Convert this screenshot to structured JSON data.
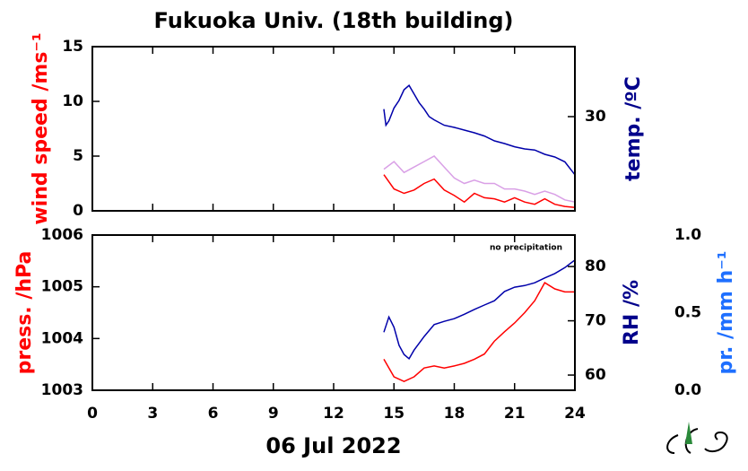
{
  "chart_data": [
    {
      "type": "line",
      "title": "Fukuoka Univ. (18th building)",
      "ylabel": "wind speed /ms⁻¹",
      "ylabel_color": "#ff0000",
      "y2label": "temp. /ºC",
      "y2label_color": "#00008b",
      "xlim": [
        0,
        24
      ],
      "xticks": [
        0,
        3,
        6,
        9,
        12,
        15,
        18,
        21,
        24
      ],
      "xtick_labels": false,
      "ylim": [
        0,
        15
      ],
      "yticks": [
        0,
        5,
        10,
        15
      ],
      "y2lim": [
        21.25,
        36.5
      ],
      "y2ticks": [
        30
      ],
      "series": [
        {
          "color": "#d9a0e6",
          "axis": "y",
          "x": [
            14.5,
            15,
            15.5,
            16,
            16.5,
            17,
            17.5,
            18,
            18.5,
            19,
            19.5,
            20,
            20.5,
            21,
            21.5,
            22,
            22.5,
            23,
            23.5,
            24
          ],
          "values": [
            3.8,
            4.5,
            3.5,
            4,
            4.5,
            5,
            4,
            3,
            2.5,
            2.8,
            2.5,
            2.5,
            2,
            2,
            1.8,
            1.5,
            1.8,
            1.5,
            1.0,
            0.8
          ]
        },
        {
          "color": "#ff0000",
          "axis": "y",
          "x": [
            14.5,
            15,
            15.5,
            16,
            16.5,
            17,
            17.5,
            18,
            18.5,
            19,
            19.5,
            20,
            20.5,
            21,
            21.5,
            22,
            22.5,
            23,
            23.5,
            24
          ],
          "values": [
            3.3,
            2.0,
            1.6,
            1.9,
            2.5,
            2.9,
            1.9,
            1.4,
            0.8,
            1.6,
            1.2,
            1.1,
            0.8,
            1.2,
            0.8,
            0.6,
            1.1,
            0.6,
            0.4,
            0.3
          ]
        },
        {
          "color": "#0000aa",
          "axis": "y2",
          "x": [
            14.5,
            14.6,
            14.75,
            15,
            15.25,
            15.5,
            15.75,
            16,
            16.25,
            16.5,
            16.75,
            17,
            17.5,
            18,
            18.5,
            19,
            19.5,
            20,
            20.5,
            21,
            21.5,
            22,
            22.5,
            23,
            23.5,
            24
          ],
          "values": [
            30.7,
            29.2,
            29.6,
            30.8,
            31.5,
            32.5,
            32.9,
            32.1,
            31.3,
            30.7,
            30,
            29.7,
            29.2,
            29.0,
            28.75,
            28.5,
            28.2,
            27.75,
            27.5,
            27.2,
            27,
            26.9,
            26.5,
            26.25,
            25.8,
            24.6
          ]
        }
      ]
    },
    {
      "type": "line",
      "xlabel": "06 Jul 2022",
      "ylabel": "press. /hPa",
      "ylabel_color": "#ff0000",
      "y2label": "RH /%",
      "y2label_color": "#00008b",
      "y3label": "pr. /mm h⁻¹",
      "y3label_color": "#1e6fff",
      "annotation": "no precipitation",
      "xlim": [
        0,
        24
      ],
      "xticks": [
        0,
        3,
        6,
        9,
        12,
        15,
        18,
        21,
        24
      ],
      "xtick_labels": true,
      "ylim": [
        1003,
        1006
      ],
      "yticks": [
        1003,
        1004,
        1005,
        1006
      ],
      "y2lim": [
        57.2,
        85.8
      ],
      "y2ticks": [
        60,
        70,
        80
      ],
      "y3lim": [
        0,
        1
      ],
      "y3ticks": [
        {
          "value": 0,
          "label": "0.0"
        },
        {
          "value": 0.5,
          "label": "0.5"
        },
        {
          "value": 1,
          "label": "1.0"
        }
      ],
      "series": [
        {
          "color": "#ff0000",
          "axis": "y",
          "x": [
            14.5,
            15,
            15.5,
            16,
            16.5,
            17,
            17.5,
            18,
            18.5,
            19,
            19.5,
            20,
            20.5,
            21,
            21.5,
            22,
            22.5,
            23,
            23.5,
            24
          ],
          "values": [
            1003.6,
            1003.26,
            1003.17,
            1003.26,
            1003.43,
            1003.47,
            1003.43,
            1003.47,
            1003.52,
            1003.6,
            1003.7,
            1003.95,
            1004.13,
            1004.3,
            1004.5,
            1004.73,
            1005.08,
            1004.96,
            1004.9,
            1004.9
          ]
        },
        {
          "color": "#0000aa",
          "axis": "y2",
          "x": [
            14.5,
            14.75,
            15,
            15.25,
            15.5,
            15.75,
            16,
            16.5,
            17,
            17.5,
            18,
            18.5,
            19,
            19.5,
            20,
            20.5,
            21,
            21.5,
            22,
            22.5,
            23,
            23.5,
            24
          ],
          "values": [
            67.9,
            70.7,
            68.8,
            65.5,
            63.8,
            63,
            64.6,
            67.1,
            69.3,
            69.9,
            70.4,
            71.2,
            72.1,
            72.9,
            73.7,
            75.4,
            76.2,
            76.5,
            77,
            77.9,
            78.7,
            79.8,
            81.2
          ]
        }
      ]
    }
  ]
}
